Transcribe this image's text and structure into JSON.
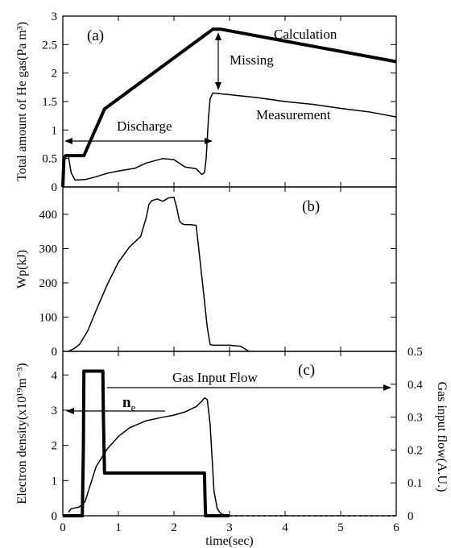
{
  "chart_data": [
    {
      "type": "line",
      "panel_label": "(a)",
      "ylabel": "Total amount of He gas(Pa m³)",
      "xlim": [
        0,
        6
      ],
      "ylim": [
        0,
        3
      ],
      "yticks": [
        "0",
        "0.5",
        "1",
        "1.5",
        "2",
        "2.5",
        "3"
      ],
      "series": [
        {
          "name": "Calculation",
          "x": [
            0,
            0.02,
            0.05,
            0.38,
            0.75,
            2.7,
            2.85,
            6
          ],
          "y": [
            0,
            0.5,
            0.55,
            0.55,
            1.37,
            2.77,
            2.77,
            2.2
          ]
        },
        {
          "name": "Measurement",
          "x": [
            0,
            0.03,
            0.1,
            0.15,
            0.22,
            0.4,
            0.6,
            0.8,
            1.0,
            1.3,
            1.5,
            1.8,
            2.0,
            2.2,
            2.4,
            2.5,
            2.55,
            2.58,
            2.62,
            2.65,
            2.7,
            3.0,
            3.5,
            4.0,
            4.5,
            5.0,
            5.5,
            6.0
          ],
          "y": [
            0,
            0.55,
            0.55,
            0.25,
            0.12,
            0.13,
            0.18,
            0.24,
            0.28,
            0.33,
            0.42,
            0.5,
            0.48,
            0.35,
            0.32,
            0.22,
            0.25,
            0.5,
            1.2,
            1.55,
            1.65,
            1.62,
            1.57,
            1.5,
            1.45,
            1.38,
            1.32,
            1.23
          ]
        }
      ],
      "annotations": {
        "calculation": "Calculation",
        "missing": "Missing",
        "measurement": "Measurement",
        "discharge": "Discharge"
      }
    },
    {
      "type": "line",
      "panel_label": "(b)",
      "ylabel": "Wp(kJ)",
      "xlim": [
        0,
        6
      ],
      "ylim": [
        0,
        480
      ],
      "yticks": [
        "0",
        "100",
        "200",
        "300",
        "400"
      ],
      "series": [
        {
          "name": "Wp",
          "x": [
            0.1,
            0.2,
            0.3,
            0.45,
            0.6,
            0.8,
            1.0,
            1.2,
            1.4,
            1.5,
            1.55,
            1.6,
            1.7,
            1.8,
            1.9,
            2.0,
            2.05,
            2.1,
            2.15,
            2.2,
            2.3,
            2.4,
            2.5,
            2.6,
            2.65,
            2.7,
            3.0,
            3.2,
            3.35
          ],
          "y": [
            0,
            8,
            20,
            60,
            120,
            195,
            260,
            305,
            335,
            390,
            430,
            440,
            445,
            438,
            448,
            450,
            420,
            380,
            372,
            370,
            370,
            368,
            220,
            70,
            20,
            18,
            18,
            15,
            0
          ]
        }
      ]
    },
    {
      "type": "line",
      "panel_label": "(c)",
      "ylabel": "Electron density(x10¹⁹m⁻³)",
      "y2label": "Gas input flow(A.U.)",
      "xlabel": "time(sec)",
      "xlim": [
        0,
        6
      ],
      "ylim": [
        0,
        4.67
      ],
      "y2lim": [
        0,
        0.5
      ],
      "xticks": [
        "0",
        "1",
        "2",
        "3",
        "4",
        "5",
        "6"
      ],
      "yticks": [
        "0",
        "1",
        "2",
        "3",
        "4"
      ],
      "y2ticks": [
        "0",
        "0.1",
        "0.2",
        "0.3",
        "0.4",
        "0.5"
      ],
      "series": [
        {
          "name": "n_e",
          "x": [
            0.1,
            0.15,
            0.3,
            0.4,
            0.5,
            0.6,
            0.8,
            1.0,
            1.2,
            1.5,
            1.8,
            2.0,
            2.2,
            2.4,
            2.5,
            2.55,
            2.6,
            2.65,
            2.72,
            2.78,
            2.85,
            3.0
          ],
          "y": [
            0.1,
            0.2,
            0.25,
            0.4,
            0.9,
            1.4,
            1.9,
            2.25,
            2.5,
            2.7,
            2.8,
            2.86,
            2.95,
            3.1,
            3.25,
            3.35,
            3.3,
            2.6,
            0.7,
            0.2,
            0.05,
            0
          ]
        },
        {
          "name": "Gas Input Flow",
          "x": [
            0,
            0.35,
            0.37,
            0.38,
            0.72,
            0.73,
            0.75,
            2.55,
            2.56,
            2.57,
            3.0
          ],
          "y": [
            0,
            0,
            0.2,
            0.44,
            0.44,
            0.3,
            0.13,
            0.13,
            0.05,
            0,
            0
          ]
        },
        {
          "name": "Gas Input Flow (dashed)",
          "x": [
            3.0,
            6.0
          ],
          "y": [
            0,
            0
          ]
        }
      ],
      "annotations": {
        "gas_input_flow": "Gas Input Flow",
        "ne_main": "n",
        "ne_sub": "e"
      }
    }
  ]
}
